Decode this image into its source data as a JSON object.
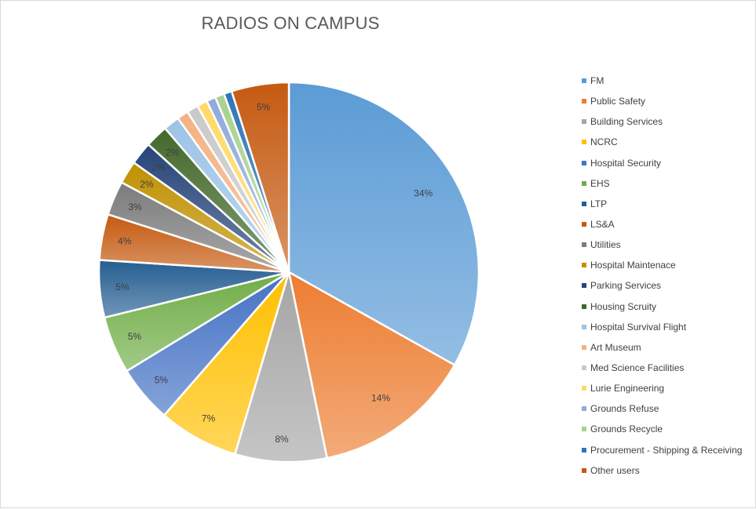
{
  "chart_data": {
    "type": "pie",
    "title": "RADIOS ON CAMPUS",
    "legend_position": "right",
    "series": [
      {
        "name": "FM",
        "value": 34,
        "label": "34%",
        "color": "#5b9bd5"
      },
      {
        "name": "Public Safety",
        "value": 14,
        "label": "14%",
        "color": "#ed7d31"
      },
      {
        "name": "Building Services",
        "value": 8,
        "label": "8%",
        "color": "#a5a5a5"
      },
      {
        "name": "NCRC",
        "value": 7,
        "label": "7%",
        "color": "#ffc000"
      },
      {
        "name": "Hospital Security",
        "value": 5,
        "label": "5%",
        "color": "#4472c4"
      },
      {
        "name": "EHS",
        "value": 5,
        "label": "5%",
        "color": "#70ad47"
      },
      {
        "name": "LTP",
        "value": 5,
        "label": "5%",
        "color": "#255e91"
      },
      {
        "name": "LS&A",
        "value": 4,
        "label": "4%",
        "color": "#c55a11"
      },
      {
        "name": "Utilities",
        "value": 3,
        "label": "3%",
        "color": "#7b7b7b"
      },
      {
        "name": "Hospital Maintenace",
        "value": 2,
        "label": "2%",
        "color": "#bf9000"
      },
      {
        "name": "Parking Services",
        "value": 2,
        "label": "2%",
        "color": "#264478"
      },
      {
        "name": "Housing Scruity",
        "value": 2,
        "label": "2%",
        "color": "#43682b"
      },
      {
        "name": "Hospital Survival Flight",
        "value": 1.4,
        "label": "",
        "color": "#9dc3e6"
      },
      {
        "name": "Art Museum",
        "value": 1,
        "label": "",
        "color": "#f4b183"
      },
      {
        "name": "Med Science Facilities",
        "value": 1,
        "label": "",
        "color": "#c9c9c9"
      },
      {
        "name": "Lurie Engineering",
        "value": 0.9,
        "label": "",
        "color": "#ffd966"
      },
      {
        "name": "Grounds Refuse",
        "value": 0.8,
        "label": "",
        "color": "#8faadc"
      },
      {
        "name": "Grounds Recycle",
        "value": 0.8,
        "label": "",
        "color": "#a9d18e"
      },
      {
        "name": "Procurement - Shipping & Receiving",
        "value": 0.7,
        "label": "",
        "color": "#2e75b6"
      },
      {
        "name": "Other users",
        "value": 5,
        "label": "5%",
        "color": "#c55a11"
      }
    ]
  }
}
